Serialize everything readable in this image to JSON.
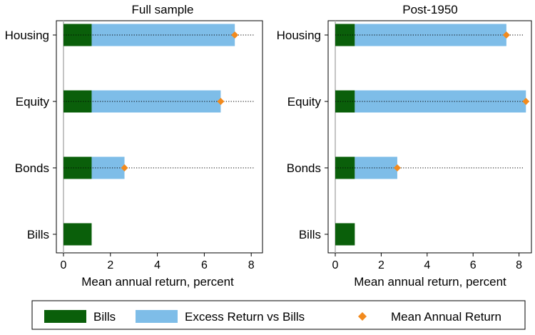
{
  "chart_data": [
    {
      "type": "bar",
      "title": "Full sample",
      "xlabel": "Mean annual return, percent",
      "ylabel": "",
      "categories": [
        "Housing",
        "Equity",
        "Bonds",
        "Bills"
      ],
      "xlim": [
        0,
        8.5
      ],
      "xticks": [
        "0",
        "2",
        "4",
        "6",
        "8"
      ],
      "grid": false,
      "series": [
        {
          "name": "Bills",
          "values": [
            1.2,
            1.2,
            1.2,
            1.2
          ]
        },
        {
          "name": "Excess Return vs Bills",
          "values": [
            6.1,
            5.5,
            1.4,
            0
          ]
        },
        {
          "name": "Mean Annual Return",
          "values": [
            7.3,
            6.7,
            2.6,
            null
          ]
        }
      ]
    },
    {
      "type": "bar",
      "title": "Post-1950",
      "xlabel": "Mean annual return, percent",
      "ylabel": "",
      "categories": [
        "Housing",
        "Equity",
        "Bonds",
        "Bills"
      ],
      "xlim": [
        0,
        8.5
      ],
      "xticks": [
        "0",
        "2",
        "4",
        "6",
        "8"
      ],
      "grid": false,
      "series": [
        {
          "name": "Bills",
          "values": [
            0.85,
            0.85,
            0.85,
            0.85
          ]
        },
        {
          "name": "Excess Return vs Bills",
          "values": [
            6.6,
            7.45,
            1.85,
            0
          ]
        },
        {
          "name": "Mean Annual Return",
          "values": [
            7.45,
            8.3,
            2.7,
            null
          ]
        }
      ]
    }
  ],
  "legend": {
    "placement": "bottom",
    "items": [
      {
        "label": "Bills",
        "kind": "bar",
        "color": "#0a5f0a"
      },
      {
        "label": "Excess Return vs Bills",
        "kind": "bar",
        "color": "#7ebde8"
      },
      {
        "label": "Mean Annual Return",
        "kind": "diamond",
        "color": "#f28a1d"
      }
    ]
  },
  "colors": {
    "bills": "#0a5f0a",
    "excess": "#7ebde8",
    "mean": "#f28a1d",
    "zero_line": "#b0b0b0",
    "frame": "#000000"
  }
}
